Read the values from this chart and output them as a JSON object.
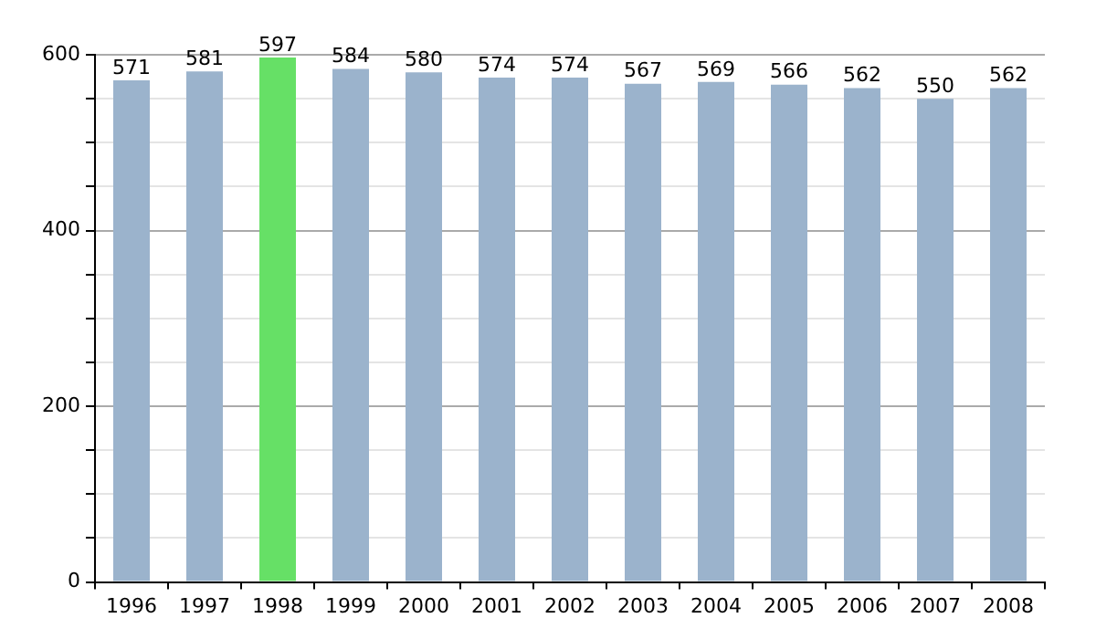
{
  "chart_data": {
    "type": "bar",
    "categories": [
      "1996",
      "1997",
      "1998",
      "1999",
      "2000",
      "2001",
      "2002",
      "2003",
      "2004",
      "2005",
      "2006",
      "2007",
      "2008"
    ],
    "values": [
      571,
      581,
      597,
      584,
      580,
      574,
      574,
      567,
      569,
      566,
      562,
      550,
      562
    ],
    "colors": [
      "#9bb3cc",
      "#9bb3cc",
      "#66e066",
      "#9bb3cc",
      "#9bb3cc",
      "#9bb3cc",
      "#9bb3cc",
      "#9bb3cc",
      "#9bb3cc",
      "#9bb3cc",
      "#9bb3cc",
      "#9bb3cc",
      "#9bb3cc"
    ],
    "ylim": [
      0,
      600
    ],
    "yticks": [
      0,
      {
        "value": 50,
        "label": null
      },
      {
        "value": 100,
        "label": null
      },
      {
        "value": 150,
        "label": null
      },
      200,
      {
        "value": 250,
        "label": null
      },
      {
        "value": 300,
        "label": null
      },
      {
        "value": 350,
        "label": null
      },
      400,
      {
        "value": 450,
        "label": null
      },
      {
        "value": 500,
        "label": null
      },
      {
        "value": 550,
        "label": null
      },
      600
    ],
    "grid": true,
    "data_labels": true,
    "legend": false
  }
}
